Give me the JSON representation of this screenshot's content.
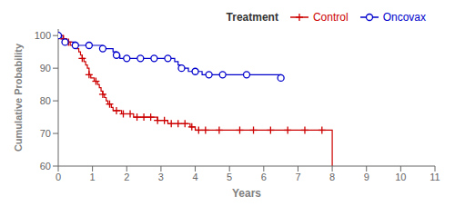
{
  "chart_data": {
    "type": "step",
    "title": "",
    "xlabel": "Years",
    "ylabel": "Cumulative Probability",
    "xlim": [
      0,
      11
    ],
    "ylim": [
      60,
      102
    ],
    "xticks": [
      0,
      1,
      2,
      3,
      4,
      5,
      6,
      7,
      8,
      9,
      10,
      11
    ],
    "yticks": [
      60,
      70,
      80,
      90,
      100
    ],
    "grid": false,
    "legend": "upper right",
    "legend_title": "Treatment",
    "series": [
      {
        "name": "Control",
        "color": "#cc0000",
        "marker": "plus",
        "x": [
          0,
          0.05,
          0.1,
          0.15,
          0.2,
          0.25,
          0.3,
          0.35,
          0.4,
          0.45,
          0.5,
          0.55,
          0.6,
          0.65,
          0.7,
          0.75,
          0.8,
          0.85,
          0.9,
          0.95,
          1.0,
          1.05,
          1.1,
          1.15,
          1.2,
          1.25,
          1.3,
          1.35,
          1.4,
          1.45,
          1.5,
          1.55,
          1.6,
          1.65,
          1.7,
          1.75,
          1.8,
          1.85,
          1.9,
          1.95,
          2.0,
          2.05,
          2.1,
          2.15,
          2.2,
          2.25,
          2.3,
          2.35,
          2.4,
          2.5,
          2.6,
          2.7,
          2.8,
          2.9,
          3.0,
          3.1,
          3.2,
          3.3,
          3.4,
          3.5,
          3.6,
          3.7,
          3.8,
          3.85,
          3.9,
          4.0,
          4.1,
          4.2,
          4.3,
          4.5,
          4.7,
          5.0,
          5.3,
          5.5,
          5.7,
          6.0,
          6.2,
          6.5,
          6.7,
          7.0,
          7.2,
          7.5,
          7.7,
          8.0,
          8.0
        ],
        "values": [
          100,
          100,
          100,
          99,
          99,
          98,
          98,
          97,
          97,
          97,
          97,
          96,
          95,
          94,
          93,
          92,
          91,
          90,
          88,
          87,
          87,
          86,
          86,
          85,
          84,
          83,
          82,
          81,
          80,
          79,
          79,
          78,
          77,
          77,
          77,
          77,
          77,
          76,
          76,
          76,
          76,
          76,
          76,
          76,
          75,
          75,
          75,
          75,
          75,
          75,
          75,
          75,
          75,
          74,
          74,
          74,
          73,
          73,
          73,
          73,
          73,
          73,
          73,
          72,
          72,
          71,
          71,
          71,
          71,
          71,
          71,
          71,
          71,
          71,
          71,
          71,
          71,
          71,
          71,
          71,
          71,
          71,
          71,
          71,
          60
        ],
        "markers": {
          "x": [
            0,
            0.15,
            0.3,
            0.5,
            0.7,
            0.9,
            1.1,
            1.3,
            1.5,
            1.7,
            1.9,
            2.1,
            2.3,
            2.5,
            2.7,
            2.9,
            3.1,
            3.3,
            3.5,
            3.7,
            3.9,
            4.1,
            4.3,
            4.7,
            5.3,
            5.7,
            6.2,
            6.7,
            7.2,
            7.7
          ],
          "values": [
            100,
            99,
            98,
            97,
            93,
            88,
            86,
            82,
            79,
            77,
            76,
            76,
            75,
            75,
            75,
            74,
            74,
            73,
            73,
            73,
            72,
            71,
            71,
            71,
            71,
            71,
            71,
            71,
            71,
            71
          ]
        }
      },
      {
        "name": "Oncovax",
        "color": "#0000cc",
        "marker": "circle",
        "x": [
          0,
          0.1,
          0.2,
          0.35,
          0.5,
          0.7,
          0.9,
          1.1,
          1.3,
          1.5,
          1.6,
          1.7,
          1.8,
          1.9,
          2.0,
          2.2,
          2.4,
          2.6,
          2.8,
          3.0,
          3.2,
          3.4,
          3.5,
          3.6,
          3.8,
          3.9,
          4.0,
          4.1,
          4.2,
          4.4,
          4.6,
          4.8,
          5.5,
          6.0,
          6.5
        ],
        "values": [
          100,
          99,
          98,
          98,
          97,
          97,
          97,
          97,
          96,
          96,
          95,
          94,
          93,
          93,
          93,
          93,
          93,
          93,
          93,
          93,
          93,
          92,
          91,
          90,
          89,
          89,
          89,
          89,
          88,
          88,
          88,
          88,
          88,
          88,
          87
        ],
        "markers": {
          "x": [
            0,
            0.2,
            0.5,
            0.9,
            1.3,
            1.7,
            2.0,
            2.4,
            2.8,
            3.2,
            3.6,
            4.0,
            4.4,
            4.8,
            5.5,
            6.5
          ],
          "values": [
            100,
            98,
            97,
            97,
            96,
            94,
            93,
            93,
            93,
            93,
            90,
            89,
            88,
            88,
            88,
            87
          ]
        }
      }
    ]
  }
}
